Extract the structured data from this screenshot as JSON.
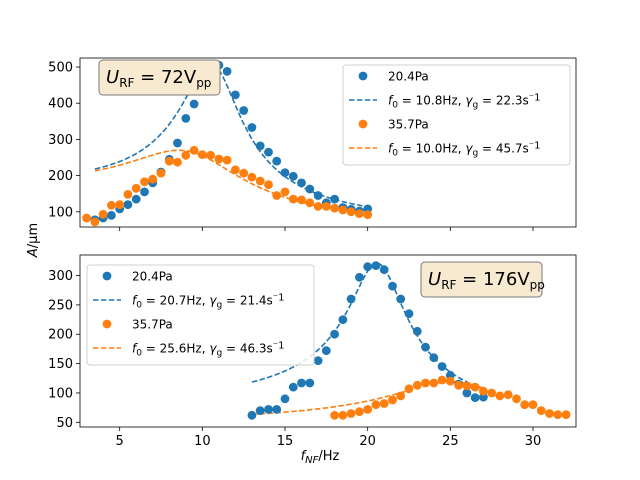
{
  "chart_data": [
    {
      "type": "scatter",
      "xlim": [
        2.6,
        32.6
      ],
      "ylim": [
        58,
        525
      ],
      "xticks": [
        5,
        10,
        15,
        20,
        25,
        30
      ],
      "yticks": [
        100,
        200,
        300,
        400,
        500
      ],
      "ytick_labels": [
        "100",
        "200",
        "300",
        "400",
        "500"
      ],
      "x_ticklabels_visible": false,
      "grid": false,
      "legend_position": "top-right",
      "annotation": {
        "main": "U",
        "sub": "RF",
        "eq": " = 72V",
        "sub2": "pp",
        "position": "top-left"
      },
      "series": [
        {
          "name": "20.4Pa",
          "color": "#1f77b4",
          "x": [
            3.5,
            4.0,
            4.5,
            5.0,
            5.5,
            6.0,
            6.5,
            7.0,
            7.5,
            8.0,
            8.5,
            9.0,
            9.5,
            10.0,
            10.5,
            11.0,
            11.5,
            12.0,
            12.5,
            13.0,
            13.5,
            14.0,
            14.5,
            15.0,
            15.5,
            16.0,
            16.5,
            17.0,
            17.5,
            18.0,
            18.5,
            19.0,
            19.5,
            20.0
          ],
          "y": [
            78,
            83,
            90,
            108,
            120,
            135,
            155,
            180,
            210,
            245,
            290,
            358,
            398,
            497,
            502,
            505,
            488,
            423,
            380,
            333,
            282,
            265,
            240,
            208,
            198,
            180,
            163,
            145,
            125,
            135,
            112,
            107,
            102,
            108
          ]
        },
        {
          "name": "35.7Pa",
          "color": "#ff7f0e",
          "x": [
            3.0,
            3.5,
            4.0,
            4.5,
            5.0,
            5.5,
            6.0,
            6.5,
            7.0,
            7.5,
            8.0,
            8.5,
            9.0,
            9.5,
            10.0,
            10.5,
            11.0,
            11.5,
            12.0,
            12.5,
            13.0,
            13.5,
            14.0,
            14.5,
            15.0,
            15.5,
            16.0,
            16.5,
            17.0,
            17.5,
            18.0,
            18.5,
            19.0,
            19.5,
            20.0
          ],
          "y": [
            83,
            72,
            93,
            118,
            120,
            148,
            165,
            183,
            190,
            207,
            240,
            237,
            256,
            270,
            258,
            256,
            246,
            243,
            216,
            207,
            196,
            185,
            175,
            145,
            155,
            135,
            133,
            125,
            115,
            115,
            110,
            105,
            100,
            95,
            92
          ]
        }
      ],
      "fits": [
        {
          "name": "f_0=10.8Hz, γ_g=22.3s⁻1",
          "label_f0": "10.8",
          "label_gamma": "22.3",
          "color": "#1f77b4",
          "f0": 10.8,
          "gamma": 22.3,
          "amplitude": 503,
          "offset": 55
        },
        {
          "name": "f_0=10.0Hz, γ_g=45.7s⁻1",
          "label_f0": "10.0",
          "label_gamma": "45.7",
          "color": "#ff7f0e",
          "f0": 10.0,
          "gamma": 45.7,
          "amplitude": 255,
          "offset": 50
        }
      ],
      "fit_range": [
        3.5,
        20.0
      ]
    },
    {
      "type": "scatter",
      "xlim": [
        2.6,
        32.6
      ],
      "ylim": [
        42,
        335
      ],
      "xticks": [
        5,
        10,
        15,
        20,
        25,
        30
      ],
      "xtick_labels": [
        "5",
        "10",
        "15",
        "20",
        "25",
        "30"
      ],
      "yticks": [
        50,
        100,
        150,
        200,
        250,
        300
      ],
      "ytick_labels": [
        "50",
        "100",
        "150",
        "200",
        "250",
        "300"
      ],
      "grid": false,
      "legend_position": "top-left",
      "annotation": {
        "main": "U",
        "sub": "RF",
        "eq": " = 176V",
        "sub2": "pp",
        "position": "top-right"
      },
      "series": [
        {
          "name": "20.4Pa",
          "color": "#1f77b4",
          "x": [
            13.0,
            13.5,
            14.0,
            14.5,
            15.0,
            15.5,
            16.0,
            16.5,
            17.0,
            17.5,
            18.0,
            18.5,
            19.0,
            19.5,
            20.0,
            20.5,
            21.0,
            21.5,
            22.0,
            22.5,
            23.0,
            23.5,
            24.0,
            24.5,
            25.0,
            25.5,
            26.0,
            26.5,
            27.0
          ],
          "y": [
            62,
            70,
            72,
            72,
            90,
            110,
            117,
            117,
            155,
            172,
            200,
            225,
            260,
            297,
            315,
            317,
            310,
            282,
            260,
            235,
            205,
            178,
            160,
            145,
            130,
            115,
            100,
            92,
            93
          ]
        },
        {
          "name": "35.7Pa",
          "color": "#ff7f0e",
          "x": [
            18.0,
            18.5,
            19.0,
            19.5,
            20.0,
            20.5,
            21.0,
            21.5,
            22.0,
            22.5,
            23.0,
            23.5,
            24.0,
            24.5,
            25.0,
            25.5,
            26.0,
            26.5,
            27.0,
            27.5,
            28.0,
            28.5,
            29.0,
            29.5,
            30.0,
            30.5,
            31.0,
            31.5,
            32.0
          ],
          "y": [
            62,
            62,
            65,
            68,
            72,
            80,
            82,
            88,
            95,
            107,
            113,
            117,
            117,
            122,
            120,
            113,
            112,
            110,
            103,
            100,
            95,
            97,
            90,
            80,
            80,
            70,
            65,
            63,
            63
          ]
        }
      ],
      "fits": [
        {
          "name": "f_0=20.7Hz, γ_g=21.4s⁻1",
          "label_f0": "20.7",
          "label_gamma": "21.4",
          "color": "#1f77b4",
          "f0": 20.7,
          "gamma": 21.4,
          "amplitude": 320,
          "offset": 45
        },
        {
          "name": "f_0=25.6Hz, γ_g=46.3s⁻1",
          "label_f0": "25.6",
          "label_gamma": "46.3",
          "color": "#ff7f0e",
          "f0": 25.6,
          "gamma": 46.3,
          "amplitude": 118,
          "offset": 30
        }
      ],
      "fit_range": [
        13.0,
        27.0
      ]
    }
  ],
  "labels": {
    "ylabel_pre": "A",
    "ylabel_post": "/μm",
    "xlabel_main": "f",
    "xlabel_sub": "NF",
    "xlabel_post": "/Hz",
    "legend_f0": "f",
    "legend_f0_sub": "0",
    "legend_gamma": "γ",
    "legend_gamma_sub": "g",
    "legend_eq": " = ",
    "legend_hz": "Hz, ",
    "legend_unit": "s",
    "legend_exp": "⁻1"
  }
}
